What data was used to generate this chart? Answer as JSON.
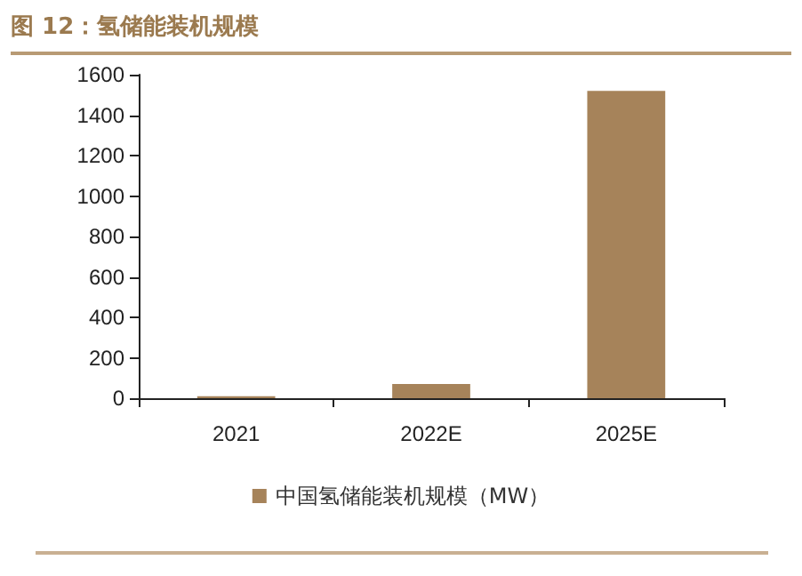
{
  "chart_data": {
    "type": "bar",
    "title": "图 12：氢储能装机规模",
    "categories": [
      "2021",
      "2022E",
      "2025E"
    ],
    "series": [
      {
        "name": "中国氢储能装机规模（MW）",
        "color": "#a6835a",
        "values": [
          10,
          70,
          1520
        ]
      }
    ],
    "ylim": [
      0,
      1600
    ],
    "yticks": [
      0,
      200,
      400,
      600,
      800,
      1000,
      1200,
      1400,
      1600
    ],
    "grid": false,
    "legend": "bottom"
  }
}
